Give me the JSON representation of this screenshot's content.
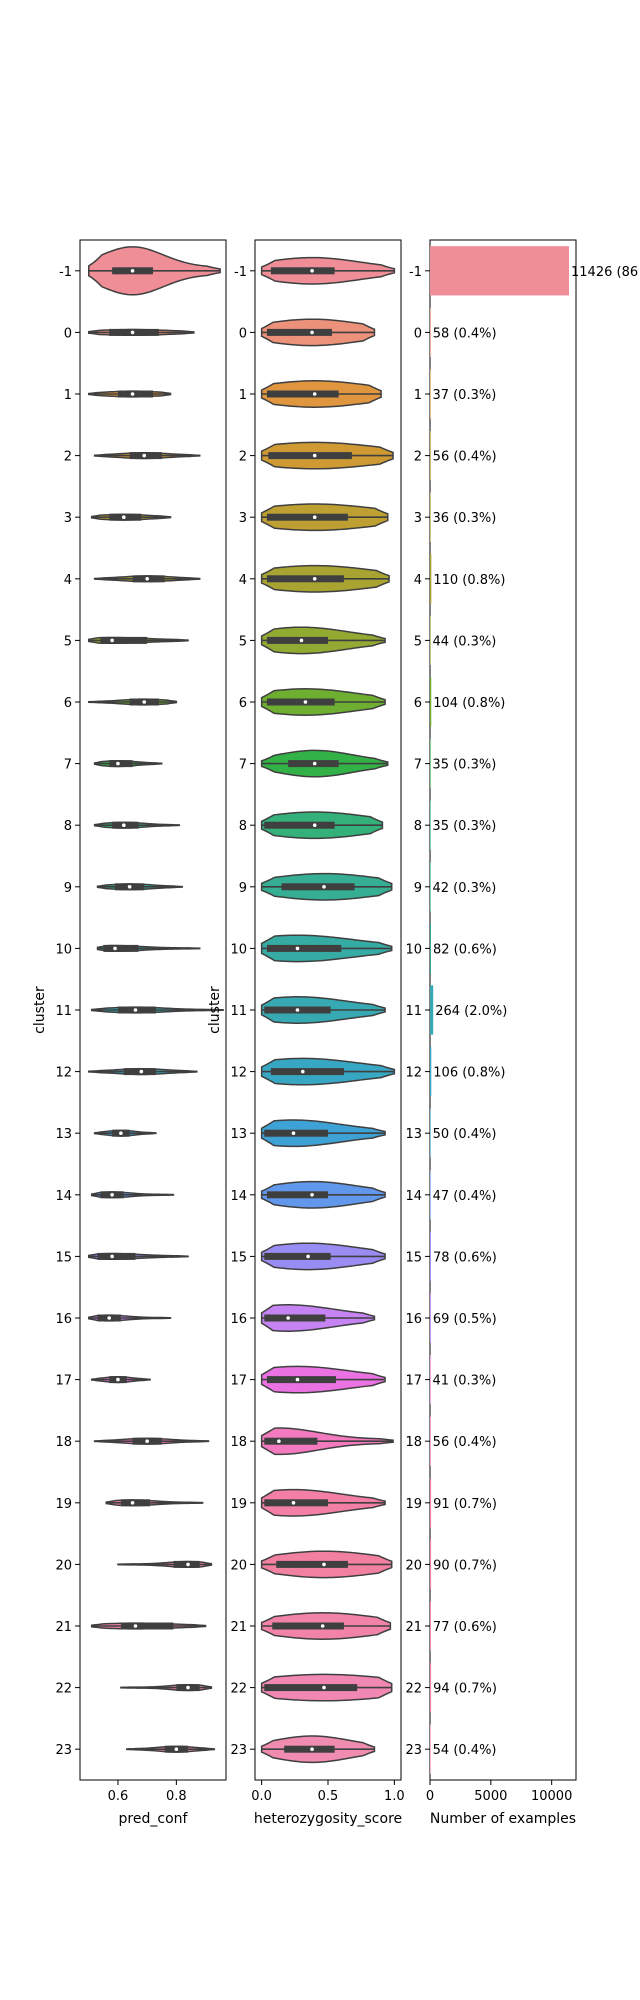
{
  "chart_data": [
    {
      "type": "violin",
      "xlabel": "pred_conf",
      "ylabel": "cluster",
      "xlim": [
        0.47,
        0.97
      ],
      "xticks": [
        "0.6",
        "0.8"
      ],
      "categories": [
        "-1",
        "0",
        "1",
        "2",
        "3",
        "4",
        "5",
        "6",
        "7",
        "8",
        "9",
        "10",
        "11",
        "12",
        "13",
        "14",
        "15",
        "16",
        "17",
        "18",
        "19",
        "20",
        "21",
        "22",
        "23"
      ],
      "summaries": [
        {
          "min": 0.5,
          "q1": 0.58,
          "median": 0.65,
          "q3": 0.72,
          "max": 0.95
        },
        {
          "min": 0.5,
          "q1": 0.57,
          "median": 0.65,
          "q3": 0.74,
          "max": 0.86
        },
        {
          "min": 0.5,
          "q1": 0.6,
          "median": 0.65,
          "q3": 0.72,
          "max": 0.78
        },
        {
          "min": 0.52,
          "q1": 0.64,
          "median": 0.69,
          "q3": 0.75,
          "max": 0.88
        },
        {
          "min": 0.51,
          "q1": 0.57,
          "median": 0.62,
          "q3": 0.68,
          "max": 0.78
        },
        {
          "min": 0.52,
          "q1": 0.65,
          "median": 0.7,
          "q3": 0.76,
          "max": 0.88
        },
        {
          "min": 0.5,
          "q1": 0.54,
          "median": 0.58,
          "q3": 0.7,
          "max": 0.84
        },
        {
          "min": 0.5,
          "q1": 0.64,
          "median": 0.69,
          "q3": 0.74,
          "max": 0.8
        },
        {
          "min": 0.52,
          "q1": 0.57,
          "median": 0.6,
          "q3": 0.65,
          "max": 0.75
        },
        {
          "min": 0.52,
          "q1": 0.58,
          "median": 0.62,
          "q3": 0.67,
          "max": 0.81
        },
        {
          "min": 0.53,
          "q1": 0.59,
          "median": 0.64,
          "q3": 0.69,
          "max": 0.82
        },
        {
          "min": 0.53,
          "q1": 0.55,
          "median": 0.59,
          "q3": 0.67,
          "max": 0.88
        },
        {
          "min": 0.51,
          "q1": 0.6,
          "median": 0.66,
          "q3": 0.73,
          "max": 0.96
        },
        {
          "min": 0.5,
          "q1": 0.62,
          "median": 0.68,
          "q3": 0.73,
          "max": 0.87
        },
        {
          "min": 0.52,
          "q1": 0.58,
          "median": 0.61,
          "q3": 0.64,
          "max": 0.73
        },
        {
          "min": 0.51,
          "q1": 0.54,
          "median": 0.58,
          "q3": 0.62,
          "max": 0.79
        },
        {
          "min": 0.5,
          "q1": 0.53,
          "median": 0.58,
          "q3": 0.66,
          "max": 0.84
        },
        {
          "min": 0.5,
          "q1": 0.53,
          "median": 0.57,
          "q3": 0.61,
          "max": 0.78
        },
        {
          "min": 0.51,
          "q1": 0.57,
          "median": 0.6,
          "q3": 0.63,
          "max": 0.71
        },
        {
          "min": 0.52,
          "q1": 0.65,
          "median": 0.7,
          "q3": 0.75,
          "max": 0.91
        },
        {
          "min": 0.56,
          "q1": 0.61,
          "median": 0.65,
          "q3": 0.71,
          "max": 0.89
        },
        {
          "min": 0.6,
          "q1": 0.79,
          "median": 0.84,
          "q3": 0.88,
          "max": 0.92
        },
        {
          "min": 0.51,
          "q1": 0.61,
          "median": 0.66,
          "q3": 0.79,
          "max": 0.9
        },
        {
          "min": 0.61,
          "q1": 0.8,
          "median": 0.84,
          "q3": 0.88,
          "max": 0.92
        },
        {
          "min": 0.63,
          "q1": 0.76,
          "median": 0.8,
          "q3": 0.84,
          "max": 0.93
        }
      ]
    },
    {
      "type": "violin",
      "xlabel": "heterozygosity_score",
      "ylabel": "cluster",
      "xlim": [
        -0.05,
        1.05
      ],
      "xticks": [
        "0.0",
        "0.5",
        "1.0"
      ],
      "categories": [
        "-1",
        "0",
        "1",
        "2",
        "3",
        "4",
        "5",
        "6",
        "7",
        "8",
        "9",
        "10",
        "11",
        "12",
        "13",
        "14",
        "15",
        "16",
        "17",
        "18",
        "19",
        "20",
        "21",
        "22",
        "23"
      ],
      "summaries": [
        {
          "min": 0.0,
          "q1": 0.07,
          "median": 0.38,
          "q3": 0.55,
          "max": 1.0
        },
        {
          "min": 0.0,
          "q1": 0.04,
          "median": 0.38,
          "q3": 0.53,
          "max": 0.85
        },
        {
          "min": 0.0,
          "q1": 0.04,
          "median": 0.4,
          "q3": 0.58,
          "max": 0.9
        },
        {
          "min": 0.0,
          "q1": 0.05,
          "median": 0.4,
          "q3": 0.68,
          "max": 0.99
        },
        {
          "min": 0.0,
          "q1": 0.04,
          "median": 0.4,
          "q3": 0.65,
          "max": 0.95
        },
        {
          "min": 0.0,
          "q1": 0.04,
          "median": 0.4,
          "q3": 0.62,
          "max": 0.96
        },
        {
          "min": 0.0,
          "q1": 0.04,
          "median": 0.3,
          "q3": 0.5,
          "max": 0.93
        },
        {
          "min": 0.0,
          "q1": 0.04,
          "median": 0.33,
          "q3": 0.55,
          "max": 0.93
        },
        {
          "min": 0.0,
          "q1": 0.2,
          "median": 0.4,
          "q3": 0.58,
          "max": 0.95
        },
        {
          "min": 0.0,
          "q1": 0.02,
          "median": 0.4,
          "q3": 0.55,
          "max": 0.91
        },
        {
          "min": 0.0,
          "q1": 0.15,
          "median": 0.47,
          "q3": 0.7,
          "max": 0.98
        },
        {
          "min": 0.0,
          "q1": 0.04,
          "median": 0.27,
          "q3": 0.6,
          "max": 0.98
        },
        {
          "min": 0.0,
          "q1": 0.02,
          "median": 0.27,
          "q3": 0.52,
          "max": 0.93
        },
        {
          "min": 0.0,
          "q1": 0.07,
          "median": 0.31,
          "q3": 0.62,
          "max": 1.0
        },
        {
          "min": 0.0,
          "q1": 0.02,
          "median": 0.24,
          "q3": 0.5,
          "max": 0.93
        },
        {
          "min": 0.0,
          "q1": 0.04,
          "median": 0.38,
          "q3": 0.5,
          "max": 0.93
        },
        {
          "min": 0.0,
          "q1": 0.02,
          "median": 0.35,
          "q3": 0.52,
          "max": 0.93
        },
        {
          "min": 0.0,
          "q1": 0.02,
          "median": 0.2,
          "q3": 0.48,
          "max": 0.85
        },
        {
          "min": 0.0,
          "q1": 0.04,
          "median": 0.27,
          "q3": 0.56,
          "max": 0.93
        },
        {
          "min": 0.0,
          "q1": 0.02,
          "median": 0.13,
          "q3": 0.42,
          "max": 0.99
        },
        {
          "min": 0.0,
          "q1": 0.02,
          "median": 0.24,
          "q3": 0.5,
          "max": 0.93
        },
        {
          "min": 0.0,
          "q1": 0.11,
          "median": 0.47,
          "q3": 0.65,
          "max": 0.98
        },
        {
          "min": 0.0,
          "q1": 0.08,
          "median": 0.46,
          "q3": 0.62,
          "max": 0.97
        },
        {
          "min": 0.0,
          "q1": 0.02,
          "median": 0.47,
          "q3": 0.72,
          "max": 0.98
        },
        {
          "min": 0.0,
          "q1": 0.17,
          "median": 0.38,
          "q3": 0.55,
          "max": 0.85
        }
      ]
    },
    {
      "type": "bar",
      "orientation": "horizontal",
      "xlabel": "Number of examples",
      "ylabel": "",
      "xlim": [
        0,
        12000
      ],
      "xticks": [
        "0",
        "5000",
        "10000"
      ],
      "categories": [
        "-1",
        "0",
        "1",
        "2",
        "3",
        "4",
        "5",
        "6",
        "7",
        "8",
        "9",
        "10",
        "11",
        "12",
        "13",
        "14",
        "15",
        "16",
        "17",
        "18",
        "19",
        "20",
        "21",
        "22",
        "23"
      ],
      "values": [
        11426,
        58,
        37,
        56,
        36,
        110,
        44,
        104,
        35,
        35,
        42,
        82,
        264,
        106,
        50,
        47,
        78,
        69,
        41,
        56,
        91,
        90,
        77,
        94,
        54
      ],
      "labels": [
        "11426 (86",
        "58 (0.4%)",
        "37 (0.3%)",
        "56 (0.4%)",
        "36 (0.3%)",
        "110 (0.8%)",
        "44 (0.3%)",
        "104 (0.8%)",
        "35 (0.3%)",
        "35 (0.3%)",
        "42 (0.3%)",
        "82 (0.6%)",
        "264 (2.0%)",
        "106 (0.8%)",
        "50 (0.4%)",
        "47 (0.4%)",
        "78 (0.6%)",
        "69 (0.5%)",
        "41 (0.3%)",
        "56 (0.4%)",
        "91 (0.7%)",
        "90 (0.7%)",
        "77 (0.6%)",
        "94 (0.7%)",
        "54 (0.4%)"
      ]
    }
  ],
  "palette": [
    "#f08e98",
    "#ec917a",
    "#e0953f",
    "#cf9a33",
    "#bd9f32",
    "#a9a432",
    "#92a932",
    "#6eaf32",
    "#32b246",
    "#34b07a",
    "#35ae93",
    "#36aba4",
    "#37a9b3",
    "#38a7c3",
    "#3ea2d6",
    "#6198ec",
    "#998cf3",
    "#c683f4",
    "#ea72e3",
    "#f47ac0",
    "#f37fa5",
    "#f280a0",
    "#f283a8",
    "#f188b3",
    "#f08cb0"
  ],
  "ink_color": "#3f3f3f"
}
